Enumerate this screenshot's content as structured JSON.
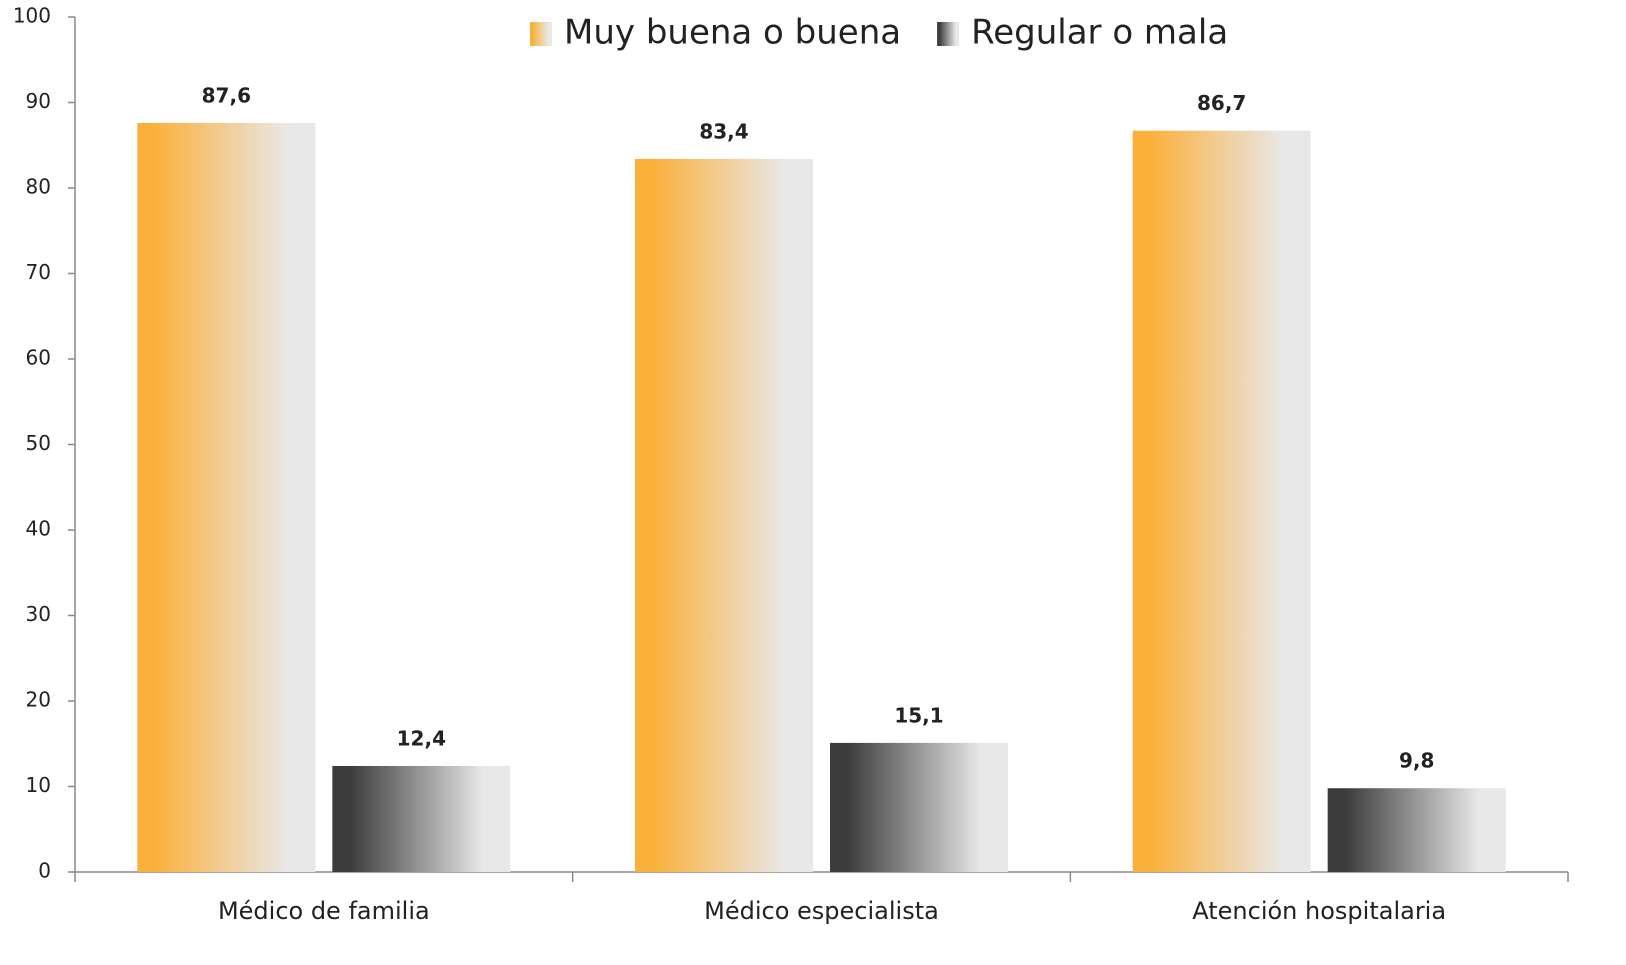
{
  "chart_data": {
    "type": "bar",
    "categories": [
      "Médico de familia",
      "Médico especialista",
      "Atención hospitalaria"
    ],
    "series": [
      {
        "name": "Muy buena o buena",
        "color": "#fbb03b",
        "values": [
          87.6,
          83.4,
          86.7
        ],
        "value_labels": [
          "87,6",
          "83,4",
          "86,7"
        ]
      },
      {
        "name": "Regular o mala",
        "color": "#3c3c3c",
        "values": [
          12.4,
          15.1,
          9.8
        ],
        "value_labels": [
          "12,4",
          "15,1",
          "9,8"
        ]
      }
    ],
    "ylim": [
      0,
      100
    ],
    "yticks": [
      0,
      10,
      20,
      30,
      40,
      50,
      60,
      70,
      80,
      90,
      100
    ],
    "grid": false,
    "legend": "top"
  }
}
